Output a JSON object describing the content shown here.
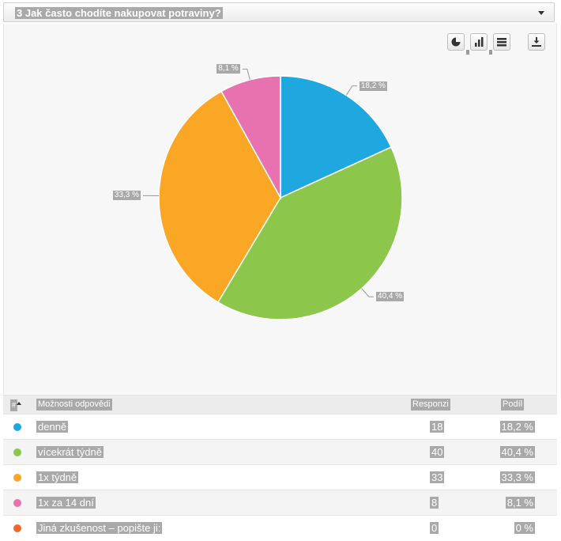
{
  "question": {
    "title": "3 Jak často chodíte nakupovat potraviny?"
  },
  "toolbar": {
    "pie_icon": "pie-chart-icon",
    "bar_icon": "bar-chart-icon",
    "table_icon": "table-icon",
    "download_icon": "download-icon"
  },
  "chart_data": {
    "type": "pie",
    "categories": [
      "denně",
      "vícekrát týdně",
      "1x týdně",
      "1x za 14 dní",
      "Jiná zkušenost – popište ji:"
    ],
    "values": [
      18,
      40,
      33,
      8,
      0
    ],
    "labels": [
      "18,2 %",
      "40,4 %",
      "33,3 %",
      "8,1 %",
      "0 %"
    ],
    "colors": [
      "#1fa8e0",
      "#8cc64a",
      "#faa726",
      "#e872b0",
      "#f0662c"
    ],
    "title": ""
  },
  "table": {
    "headers": {
      "sort_icon": "#",
      "option": "Možnosti odpovědi",
      "responses": "Responzi",
      "share": "Podíl"
    },
    "rows": [
      {
        "label": "denně",
        "count": "18",
        "share": "18,2 %",
        "color": "#1fa8e0"
      },
      {
        "label": "vícekrát týdně",
        "count": "40",
        "share": "40,4 %",
        "color": "#8cc64a"
      },
      {
        "label": "1x týdně",
        "count": "33",
        "share": "33,3 %",
        "color": "#faa726"
      },
      {
        "label": "1x za 14 dní",
        "count": "8",
        "share": "8,1 %",
        "color": "#e872b0"
      },
      {
        "label": "Jiná zkušenost – popište ji:",
        "count": "0",
        "share": "0 %",
        "color": "#f0662c"
      }
    ]
  }
}
